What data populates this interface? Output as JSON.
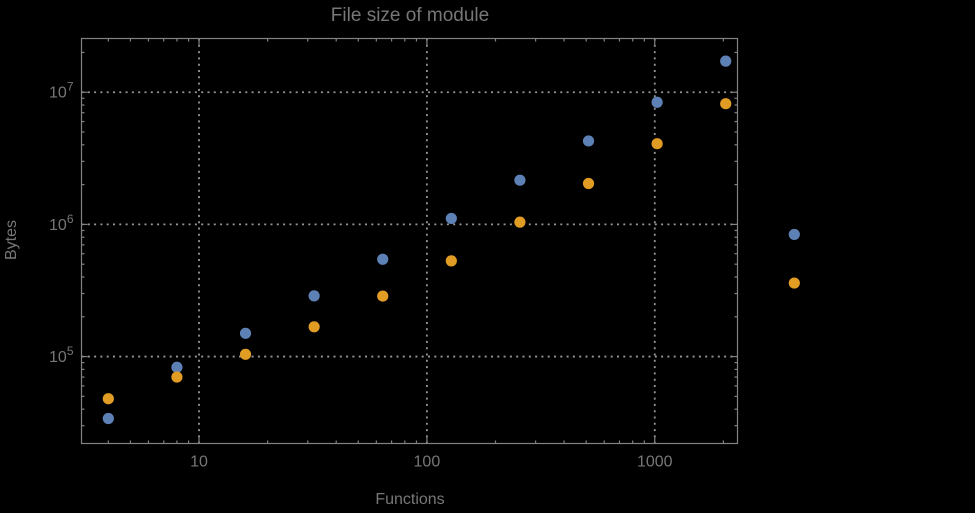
{
  "title": "File size of module",
  "colors": {
    "background": "#000000",
    "text": "#777777",
    "frame": "#828282",
    "grid": "#969696",
    "series_blue": "#5e81b5",
    "series_orange": "#e19c24"
  },
  "chart_data": {
    "type": "scatter",
    "title": "File size of module",
    "xlabel": "Functions",
    "ylabel": "Bytes",
    "x_scale": "log",
    "y_scale": "log",
    "grid": "dotted major gridlines, framed plot with mirrored log minor ticks",
    "legend": "none",
    "xlim": [
      3.05,
      2307
    ],
    "ylim": [
      22000,
      25500000
    ],
    "x": [
      4,
      8,
      16,
      32,
      64,
      128,
      256,
      512,
      1024,
      2048,
      4096
    ],
    "series": [
      {
        "name": "blue",
        "color": "#5e81b5",
        "values": [
          34000,
          83000,
          150000,
          288000,
          545000,
          1110000,
          2160000,
          4280000,
          8400000,
          17200000,
          840000
        ]
      },
      {
        "name": "orange",
        "color": "#e19c24",
        "values": [
          48000,
          70000,
          104000,
          168000,
          287000,
          530000,
          1040000,
          2040000,
          4080000,
          8190000,
          360000
        ]
      }
    ],
    "x_ticks": [
      {
        "value": 10,
        "label": "10"
      },
      {
        "value": 100,
        "label": "100"
      },
      {
        "value": 1000,
        "label": "1000"
      }
    ],
    "y_ticks": [
      {
        "value": 100000,
        "mantissa": "10",
        "exponent": "5"
      },
      {
        "value": 1000000,
        "mantissa": "10",
        "exponent": "6"
      },
      {
        "value": 10000000,
        "mantissa": "10",
        "exponent": "7"
      }
    ]
  }
}
